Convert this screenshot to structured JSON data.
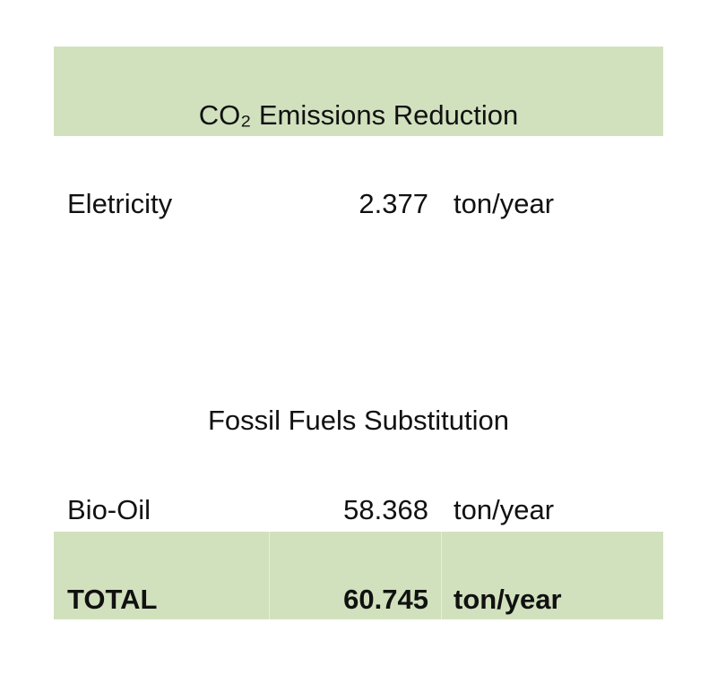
{
  "header": {
    "title": "CO₂ Emissions Reduction"
  },
  "table": {
    "rows": [
      [
        "Eletricity",
        "2.377",
        "ton/year"
      ],
      [
        "Bio-Oil",
        "58.368",
        "ton/year"
      ]
    ],
    "section": "Fossil Fuels Substitution",
    "total": [
      "TOTAL",
      "60.745",
      "ton/year"
    ]
  }
}
